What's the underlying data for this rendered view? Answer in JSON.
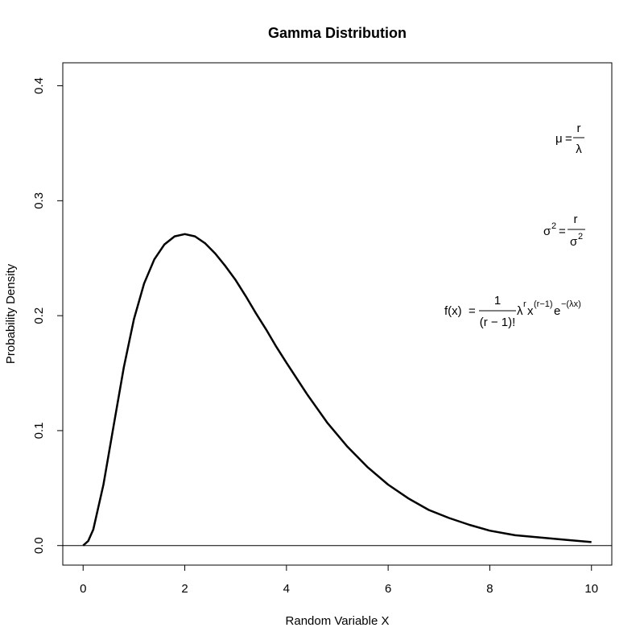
{
  "chart_data": {
    "type": "line",
    "title": "Gamma Distribution",
    "xlabel": "Random Variable X",
    "ylabel": "Probability Density",
    "xlim": [
      -0.4,
      10.4
    ],
    "ylim": [
      -0.017,
      0.42
    ],
    "x_ticks": [
      "0",
      "2",
      "4",
      "6",
      "8",
      "10"
    ],
    "y_ticks": [
      "0.0",
      "0.1",
      "0.2",
      "0.3",
      "0.4"
    ],
    "grid": false,
    "reference_line_y": 0,
    "series": [
      {
        "x": [
          0,
          0.1,
          0.2,
          0.4,
          0.6,
          0.8,
          1.0,
          1.2,
          1.4,
          1.6,
          1.8,
          2.0,
          2.2,
          2.4,
          2.6,
          2.8,
          3.0,
          3.2,
          3.4,
          3.6,
          3.8,
          4.0,
          4.4,
          4.8,
          5.2,
          5.6,
          6.0,
          6.4,
          6.8,
          7.2,
          7.6,
          8.0,
          8.5,
          9.0,
          9.5,
          10.0
        ],
        "y": [
          0.0,
          0.004,
          0.014,
          0.053,
          0.104,
          0.155,
          0.197,
          0.228,
          0.249,
          0.262,
          0.269,
          0.271,
          0.269,
          0.263,
          0.254,
          0.243,
          0.231,
          0.217,
          0.202,
          0.188,
          0.173,
          0.159,
          0.132,
          0.107,
          0.086,
          0.068,
          0.053,
          0.041,
          0.031,
          0.024,
          0.018,
          0.013,
          0.009,
          0.007,
          0.005,
          0.003
        ]
      }
    ],
    "annotations": {
      "mean": {
        "lhs": "μ",
        "eq": "=",
        "num": "r",
        "den": "λ"
      },
      "variance": {
        "lhs": "σ",
        "lhs_sup": "2",
        "eq": "=",
        "num": "r",
        "den": "σ",
        "den_sup": "2"
      },
      "density": {
        "lhs": "f(x)",
        "eq": "=",
        "num": "1",
        "den": "(r − 1)!",
        "t1": "λ",
        "t1_sup": "r",
        "t2": "x",
        "t2_sup": "(r−1)",
        "t3": "e",
        "t3_sup": "−(λx)"
      }
    }
  }
}
